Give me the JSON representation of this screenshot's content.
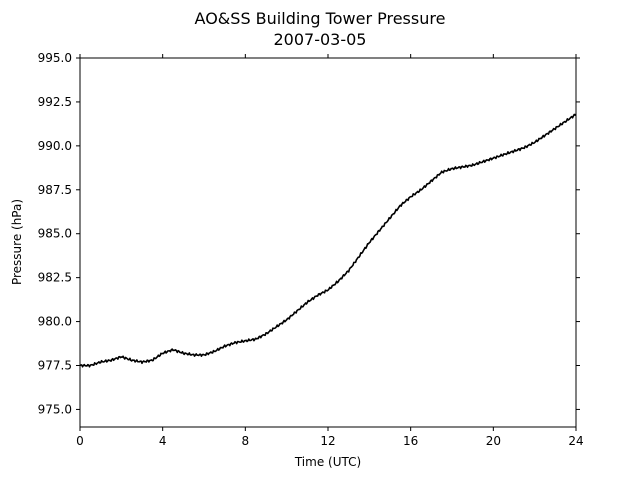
{
  "chart_data": {
    "type": "line",
    "title": "AO&SS Building Tower Pressure",
    "subtitle": "2007-03-05",
    "xlabel": "Time (UTC)",
    "ylabel": "Pressure (hPa)",
    "xlim": [
      0,
      24
    ],
    "ylim": [
      974.0,
      995.0
    ],
    "xticks": [
      0,
      4,
      8,
      12,
      16,
      20,
      24
    ],
    "yticks": [
      975.0,
      977.5,
      980.0,
      982.5,
      985.0,
      987.5,
      990.0,
      992.5,
      995.0
    ],
    "ytick_labels": [
      "975.0",
      "977.5",
      "980.0",
      "982.5",
      "985.0",
      "987.5",
      "990.0",
      "992.5",
      "995.0"
    ],
    "grid": false,
    "series": [
      {
        "color": "#000000",
        "x": [
          0,
          0.5,
          1.0,
          1.5,
          2.0,
          2.5,
          3.0,
          3.5,
          4.0,
          4.5,
          5.0,
          5.5,
          6.0,
          6.5,
          7.0,
          7.5,
          8.0,
          8.5,
          9.0,
          9.5,
          10.0,
          10.5,
          11.0,
          11.5,
          12.0,
          12.5,
          13.0,
          13.5,
          14.0,
          14.5,
          15.0,
          15.5,
          16.0,
          16.5,
          17.0,
          17.5,
          18.0,
          18.5,
          19.0,
          19.5,
          20.0,
          20.5,
          21.0,
          21.5,
          22.0,
          22.5,
          23.0,
          23.5,
          24.0
        ],
        "y": [
          977.5,
          977.5,
          977.7,
          977.8,
          978.0,
          977.8,
          977.7,
          977.8,
          978.2,
          978.4,
          978.2,
          978.1,
          978.1,
          978.3,
          978.6,
          978.8,
          978.9,
          979.0,
          979.3,
          979.7,
          980.1,
          980.6,
          981.1,
          981.5,
          981.8,
          982.3,
          982.9,
          983.7,
          984.5,
          985.2,
          985.9,
          986.6,
          987.1,
          987.5,
          988.0,
          988.5,
          988.7,
          988.8,
          988.9,
          989.1,
          989.3,
          989.5,
          989.7,
          989.9,
          990.2,
          990.6,
          991.0,
          991.4,
          991.8
        ]
      }
    ]
  }
}
